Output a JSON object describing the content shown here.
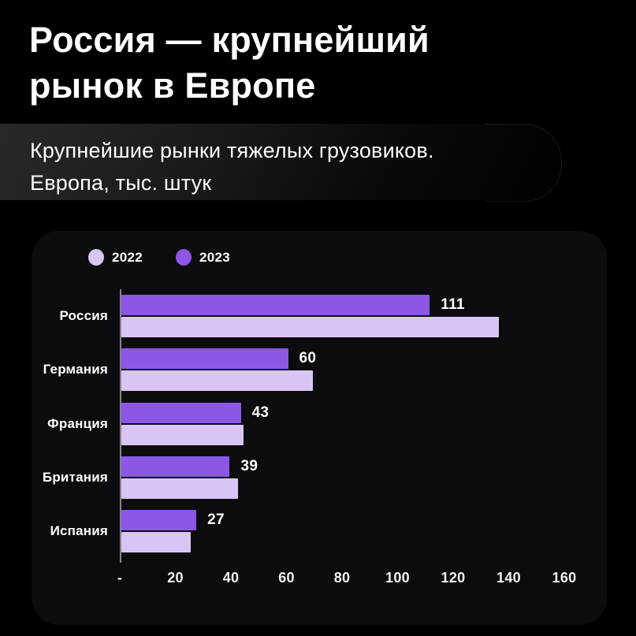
{
  "header": {
    "title_line1": "Россия — крупнейший",
    "title_line2": "рынок в Европе",
    "subtitle_line1": "Крупнейшие рынки тяжелых грузовиков.",
    "subtitle_line2": "Европа, тыс. штук"
  },
  "colors": {
    "page_background": "#000000",
    "card_background": "#0c0c0f",
    "series_2022": "#d8c5f5",
    "series_2023": "#8c57e5",
    "axis_line": "#84848d",
    "text": "#ffffff"
  },
  "chart_data": {
    "type": "bar",
    "orientation": "horizontal",
    "title": "Крупнейшие рынки тяжелых грузовиков. Европа, тыс. штук",
    "categories": [
      "Россия",
      "Германия",
      "Франция",
      "Британия",
      "Испания"
    ],
    "series": [
      {
        "name": "2022",
        "color": "#d8c5f5",
        "values": [
          136,
          69,
          44,
          42,
          25
        ],
        "labels_visible": false
      },
      {
        "name": "2023",
        "color": "#8c57e5",
        "values": [
          111,
          60,
          43,
          39,
          27
        ],
        "labels_visible": true
      }
    ],
    "bar_order_top_to_bottom": [
      "2023",
      "2022"
    ],
    "data_labels_2023": [
      "111",
      "60",
      "43",
      "39",
      "27"
    ],
    "xlim": [
      0,
      160
    ],
    "x_ticks": [
      "-",
      "20",
      "40",
      "60",
      "80",
      "100",
      "120",
      "140",
      "160"
    ],
    "legend_position": "top-left",
    "grid": false
  }
}
